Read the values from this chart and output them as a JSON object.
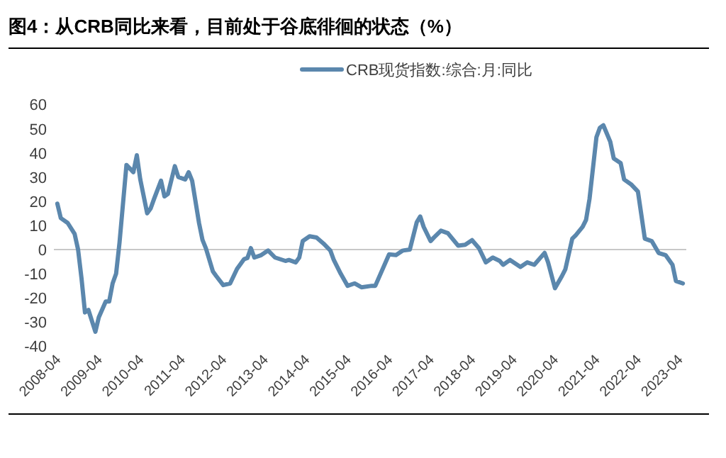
{
  "chart_data": {
    "type": "line",
    "title": "图4：从CRB同比来看，目前处于谷底徘徊的状态（%）",
    "legend": "top",
    "line_style": "solid",
    "x": [
      "2008-04",
      "2008-05",
      "2008-07",
      "2008-09",
      "2008-10",
      "2008-11",
      "2008-12",
      "2009-01",
      "2009-03",
      "2009-04",
      "2009-06",
      "2009-07",
      "2009-08",
      "2009-09",
      "2009-10",
      "2009-12",
      "2010-02",
      "2010-03",
      "2010-04",
      "2010-06",
      "2010-07",
      "2010-08",
      "2010-10",
      "2010-11",
      "2010-12",
      "2011-02",
      "2011-03",
      "2011-05",
      "2011-06",
      "2011-07",
      "2011-09",
      "2011-10",
      "2011-11",
      "2012-01",
      "2012-02",
      "2012-04",
      "2012-06",
      "2012-08",
      "2012-10",
      "2012-11",
      "2012-12",
      "2013-01",
      "2013-03",
      "2013-05",
      "2013-07",
      "2013-10",
      "2013-11",
      "2014-01",
      "2014-02",
      "2014-03",
      "2014-05",
      "2014-07",
      "2014-09",
      "2014-11",
      "2014-12",
      "2015-02",
      "2015-04",
      "2015-06",
      "2015-08",
      "2015-11",
      "2015-12",
      "2016-04",
      "2016-06",
      "2016-08",
      "2016-10",
      "2016-12",
      "2017-01",
      "2017-02",
      "2017-04",
      "2017-05",
      "2017-07",
      "2017-09",
      "2017-12",
      "2018-02",
      "2018-04",
      "2018-06",
      "2018-08",
      "2018-10",
      "2018-12",
      "2019-01",
      "2019-03",
      "2019-06",
      "2019-08",
      "2019-10",
      "2020-01",
      "2020-02",
      "2020-04",
      "2020-06",
      "2020-07",
      "2020-09",
      "2020-10",
      "2020-12",
      "2021-01",
      "2021-02",
      "2021-04",
      "2021-05",
      "2021-06",
      "2021-08",
      "2021-09",
      "2021-11",
      "2021-12",
      "2022-02",
      "2022-04",
      "2022-05",
      "2022-06",
      "2022-08",
      "2022-10",
      "2022-12",
      "2023-02",
      "2023-03",
      "2023-05"
    ],
    "series": [
      {
        "name": "CRB现货指数:综合:月:同比",
        "color": "#5b87ad",
        "values": [
          19,
          13,
          11,
          6.5,
          0,
          -12,
          -26,
          -25,
          -34,
          -28,
          -21.5,
          -21.5,
          -14,
          -10,
          3,
          35,
          32,
          39,
          29,
          15,
          17,
          21,
          28.5,
          22,
          23,
          34.5,
          30,
          29,
          32,
          28.5,
          11,
          4,
          0.5,
          -9,
          -11,
          -14.7,
          -14,
          -8,
          -4,
          -3.5,
          0.6,
          -3.3,
          -2.3,
          -0.4,
          -3.3,
          -4.7,
          -4.3,
          -5.3,
          -3.3,
          3.5,
          5.5,
          5,
          2.5,
          -0.4,
          -4.3,
          -10,
          -15,
          -14,
          -15.6,
          -15,
          -15,
          -2,
          -2.3,
          -0.4,
          0,
          11.3,
          13.7,
          9.4,
          3.5,
          5,
          7.8,
          6.8,
          1.6,
          2,
          3.9,
          0.6,
          -5.3,
          -3.3,
          -4.7,
          -6.3,
          -4.3,
          -7.2,
          -5.3,
          -6.3,
          -1.4,
          -5.3,
          -16,
          -11,
          -8.2,
          4.5,
          5.9,
          9.4,
          12.3,
          21,
          46.5,
          50.4,
          51.4,
          44.6,
          37.7,
          35.8,
          29,
          27,
          24,
          14.3,
          4.5,
          3.5,
          -1.4,
          -2.3,
          -6.3,
          -13,
          -14
        ]
      }
    ],
    "xlim": [
      "2008-03",
      "2023-06"
    ],
    "xticks": [
      "2008-04",
      "2009-04",
      "2010-04",
      "2011-04",
      "2012-04",
      "2013-04",
      "2014-04",
      "2015-04",
      "2016-04",
      "2017-04",
      "2018-04",
      "2019-04",
      "2020-04",
      "2021-04",
      "2022-04",
      "2023-04"
    ],
    "ylim": [
      -40,
      60
    ],
    "yticks": [
      -40,
      -30,
      -20,
      -10,
      0,
      10,
      20,
      30,
      40,
      50,
      60
    ]
  }
}
